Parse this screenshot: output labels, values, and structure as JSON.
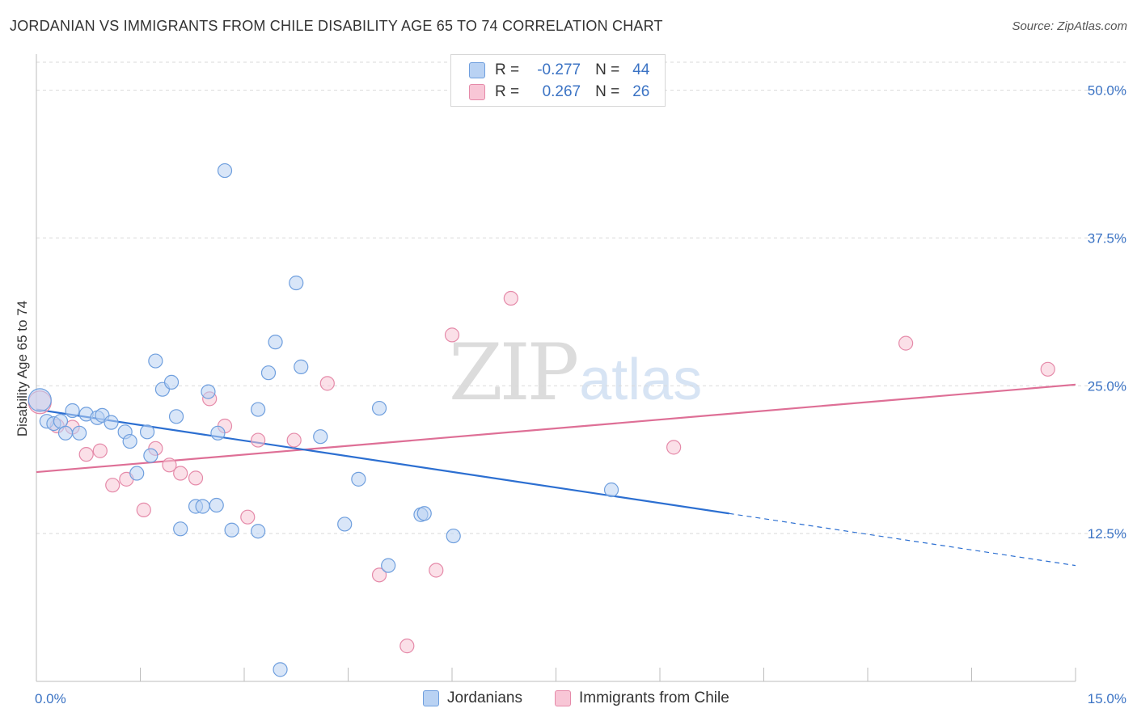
{
  "title": "JORDANIAN VS IMMIGRANTS FROM CHILE DISABILITY AGE 65 TO 74 CORRELATION CHART",
  "source": "Source: ZipAtlas.com",
  "watermark": {
    "zip": "ZIP",
    "atlas": "atlas"
  },
  "legend": {
    "rows": [
      {
        "r_label": "R =",
        "r_value": "-0.277",
        "n_label": "N =",
        "n_value": "44"
      },
      {
        "r_label": "R =",
        "r_value": "0.267",
        "n_label": "N =",
        "n_value": "26"
      }
    ]
  },
  "bottom_legend": [
    "Jordanians",
    "Immigrants from Chile"
  ],
  "colors": {
    "blue_fill": "#b9d2f3",
    "blue_stroke": "#6f9fde",
    "blue_line": "#2c6fd1",
    "pink_fill": "#f8c6d6",
    "pink_stroke": "#e58aa9",
    "pink_line": "#de6f96",
    "tick_label": "#3b73c4",
    "grid": "#d9d9d9"
  },
  "chart_data": {
    "type": "scatter",
    "title": "JORDANIAN VS IMMIGRANTS FROM CHILE DISABILITY AGE 65 TO 74 CORRELATION CHART",
    "xlabel": "",
    "ylabel": "Disability Age 65 to 74",
    "xlim": [
      0,
      15
    ],
    "ylim": [
      0,
      52.5
    ],
    "x_tick_labels": [
      "0.0%",
      "15.0%"
    ],
    "y_ticks": [
      12.5,
      25,
      37.5,
      50
    ],
    "y_tick_labels": [
      "12.5%",
      "25.0%",
      "37.5%",
      "50.0%"
    ],
    "grid": "horizontal dashed",
    "legend_position": "top-center",
    "series": [
      {
        "name": "Jordanians",
        "color": "#6f9fde",
        "R": -0.277,
        "N": 44,
        "trend": {
          "x0": 0,
          "y0": 23.0,
          "x1": 10.0,
          "y1": 14.2,
          "dashed_to_x": 15,
          "dashed_to_y": 9.8
        },
        "points": [
          {
            "x": 0.05,
            "y": 23.8
          },
          {
            "x": 0.15,
            "y": 22.0
          },
          {
            "x": 0.25,
            "y": 21.8
          },
          {
            "x": 0.35,
            "y": 22.0
          },
          {
            "x": 0.42,
            "y": 21.0
          },
          {
            "x": 0.52,
            "y": 22.9
          },
          {
            "x": 0.62,
            "y": 21.0
          },
          {
            "x": 0.72,
            "y": 22.6
          },
          {
            "x": 0.88,
            "y": 22.3
          },
          {
            "x": 0.95,
            "y": 22.5
          },
          {
            "x": 1.08,
            "y": 21.9
          },
          {
            "x": 1.28,
            "y": 21.1
          },
          {
            "x": 1.35,
            "y": 20.3
          },
          {
            "x": 1.45,
            "y": 17.6
          },
          {
            "x": 1.6,
            "y": 21.1
          },
          {
            "x": 1.65,
            "y": 19.1
          },
          {
            "x": 1.72,
            "y": 27.1
          },
          {
            "x": 1.82,
            "y": 24.7
          },
          {
            "x": 1.95,
            "y": 25.3
          },
          {
            "x": 2.02,
            "y": 22.4
          },
          {
            "x": 2.08,
            "y": 12.9
          },
          {
            "x": 2.3,
            "y": 14.8
          },
          {
            "x": 2.4,
            "y": 14.8
          },
          {
            "x": 2.48,
            "y": 24.5
          },
          {
            "x": 2.6,
            "y": 14.9
          },
          {
            "x": 2.62,
            "y": 21.0
          },
          {
            "x": 2.72,
            "y": 43.2
          },
          {
            "x": 2.82,
            "y": 12.8
          },
          {
            "x": 3.2,
            "y": 12.7
          },
          {
            "x": 3.2,
            "y": 23.0
          },
          {
            "x": 3.35,
            "y": 26.1
          },
          {
            "x": 3.45,
            "y": 28.7
          },
          {
            "x": 3.75,
            "y": 33.7
          },
          {
            "x": 3.82,
            "y": 26.6
          },
          {
            "x": 4.1,
            "y": 20.7
          },
          {
            "x": 4.45,
            "y": 13.3
          },
          {
            "x": 4.65,
            "y": 17.1
          },
          {
            "x": 4.95,
            "y": 23.1
          },
          {
            "x": 5.08,
            "y": 9.8
          },
          {
            "x": 5.55,
            "y": 14.1
          },
          {
            "x": 5.6,
            "y": 14.2
          },
          {
            "x": 6.02,
            "y": 12.3
          },
          {
            "x": 8.3,
            "y": 16.2
          },
          {
            "x": 3.52,
            "y": 1.0
          }
        ]
      },
      {
        "name": "Immigrants from Chile",
        "color": "#e58aa9",
        "R": 0.267,
        "N": 26,
        "trend": {
          "x0": 0,
          "y0": 17.7,
          "x1": 15,
          "y1": 25.1
        },
        "points": [
          {
            "x": 0.05,
            "y": 23.6
          },
          {
            "x": 0.3,
            "y": 21.6
          },
          {
            "x": 0.52,
            "y": 21.5
          },
          {
            "x": 0.72,
            "y": 19.2
          },
          {
            "x": 0.92,
            "y": 19.5
          },
          {
            "x": 1.1,
            "y": 16.6
          },
          {
            "x": 1.3,
            "y": 17.1
          },
          {
            "x": 1.55,
            "y": 14.5
          },
          {
            "x": 1.72,
            "y": 19.7
          },
          {
            "x": 1.92,
            "y": 18.3
          },
          {
            "x": 2.08,
            "y": 17.6
          },
          {
            "x": 2.3,
            "y": 17.2
          },
          {
            "x": 2.5,
            "y": 23.9
          },
          {
            "x": 2.72,
            "y": 21.6
          },
          {
            "x": 3.05,
            "y": 13.9
          },
          {
            "x": 3.2,
            "y": 20.4
          },
          {
            "x": 3.72,
            "y": 20.4
          },
          {
            "x": 4.2,
            "y": 25.2
          },
          {
            "x": 4.95,
            "y": 9.0
          },
          {
            "x": 5.35,
            "y": 3.0
          },
          {
            "x": 5.77,
            "y": 9.4
          },
          {
            "x": 6.0,
            "y": 29.3
          },
          {
            "x": 6.85,
            "y": 32.4
          },
          {
            "x": 9.2,
            "y": 19.8
          },
          {
            "x": 12.55,
            "y": 28.6
          },
          {
            "x": 14.6,
            "y": 26.4
          }
        ]
      }
    ]
  }
}
